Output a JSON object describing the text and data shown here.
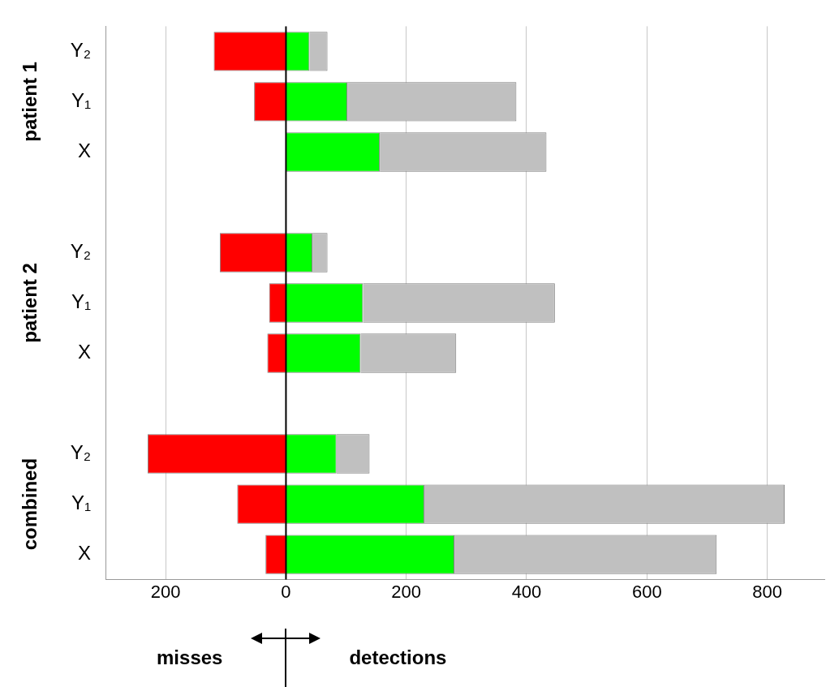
{
  "chart_data": {
    "type": "bar",
    "orientation": "horizontal",
    "stacked": true,
    "categories": [
      "Y₂",
      "Y₁",
      "X",
      null,
      "Y₂",
      "Y₁",
      "X",
      null,
      "Y₂",
      "Y₁",
      "X"
    ],
    "series": [
      {
        "color": "#ff0000",
        "values": [
          -120,
          -53,
          null,
          null,
          -110,
          -28,
          -31,
          null,
          -230,
          -81,
          -34
        ]
      },
      {
        "color": "#00ff00",
        "values": [
          39,
          102,
          156,
          null,
          44,
          128,
          124,
          null,
          84,
          230,
          280
        ]
      },
      {
        "color": "#c0c0c0",
        "values": [
          30,
          281,
          277,
          null,
          25,
          319,
          159,
          null,
          55,
          599,
          436
        ]
      }
    ],
    "xlim": [
      -300,
      895
    ],
    "xticks": [
      {
        "value": -200,
        "label": "200"
      },
      0,
      200,
      400,
      600,
      800
    ],
    "grid": "x",
    "legend": false,
    "ref_lines": [
      {
        "axis": "x",
        "value": 0,
        "color": "#000000"
      }
    ],
    "annotations": [
      "patient 1",
      "patient 2",
      "combined",
      "misses",
      "detections"
    ]
  }
}
